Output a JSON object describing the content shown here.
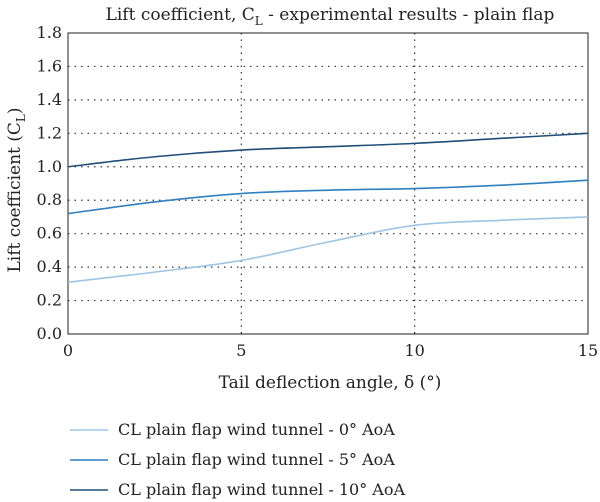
{
  "chart_data": {
    "type": "line",
    "title": "Lift coefficient, C_L - experimental results - plain flap",
    "title_main": "Lift coefficient, C",
    "title_sub": "L",
    "title_rest": " - experimental results - plain flap",
    "xlabel": "Tail deflection angle, δ (°)",
    "ylabel_main": "Lift coefficient (C",
    "ylabel_sub": "L",
    "ylabel_end": ")",
    "xlim": [
      0,
      15
    ],
    "ylim": [
      0.0,
      1.8
    ],
    "xticks": [
      0,
      5,
      10,
      15
    ],
    "xtick_labels": [
      "0",
      "5",
      "10",
      "15"
    ],
    "yticks": [
      0.0,
      0.2,
      0.4,
      0.6,
      0.8,
      1.0,
      1.2,
      1.4,
      1.6,
      1.8
    ],
    "ytick_labels": [
      "0.0",
      "0.2",
      "0.4",
      "0.6",
      "0.8",
      "1.0",
      "1.2",
      "1.4",
      "1.6",
      "1.8"
    ],
    "grid": true,
    "legend_position": "bottom",
    "series": [
      {
        "name": "CL plain flap wind tunnel - 0° AoA",
        "color": "#9ec5e6",
        "x": [
          0,
          2.5,
          5,
          7.5,
          10,
          12.5,
          15
        ],
        "y": [
          0.31,
          0.37,
          0.44,
          0.55,
          0.65,
          0.68,
          0.7
        ]
      },
      {
        "name": "CL plain flap wind tunnel - 5° AoA",
        "color": "#2f7fc1",
        "x": [
          0,
          2.5,
          5,
          7.5,
          10,
          12.5,
          15
        ],
        "y": [
          0.72,
          0.79,
          0.84,
          0.86,
          0.87,
          0.89,
          0.92
        ]
      },
      {
        "name": "CL plain flap wind tunnel - 10° AoA",
        "color": "#1f4e79",
        "x": [
          0,
          2.5,
          5,
          7.5,
          10,
          12.5,
          15
        ],
        "y": [
          1.0,
          1.06,
          1.1,
          1.12,
          1.14,
          1.17,
          1.2
        ]
      }
    ]
  }
}
